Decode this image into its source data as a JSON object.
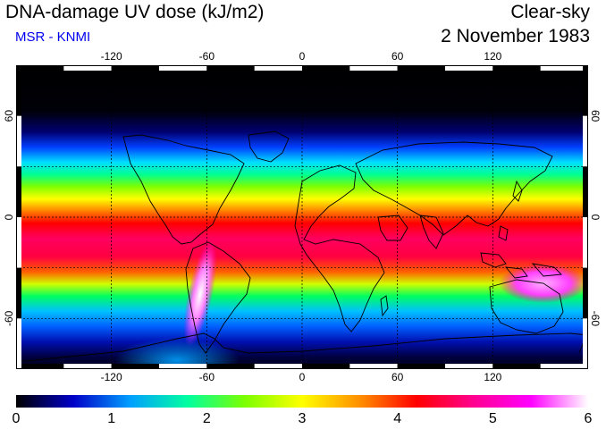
{
  "header": {
    "title": "DNA-damage UV dose (kJ/m2)",
    "subtitle": "MSR - KNMI",
    "condition": "Clear-sky",
    "date": "2 November 1983"
  },
  "map": {
    "lon_ticks": [
      "-120",
      "-60",
      "0",
      "60",
      "120"
    ],
    "lat_ticks": [
      "60",
      "0",
      "-60"
    ],
    "lon_range": [
      -180,
      180
    ],
    "lat_range": [
      -90,
      90
    ],
    "grid_style": "dotted"
  },
  "colorbar": {
    "ticks": [
      "0",
      "1",
      "2",
      "3",
      "4",
      "5",
      "6"
    ],
    "range": [
      0,
      6
    ],
    "colors": [
      "#000000",
      "#0000c8",
      "#00a0ff",
      "#00ffa0",
      "#7cff00",
      "#ffff00",
      "#ff9000",
      "#ff0000",
      "#ff0090",
      "#ff00ff",
      "#ffffff"
    ]
  }
}
